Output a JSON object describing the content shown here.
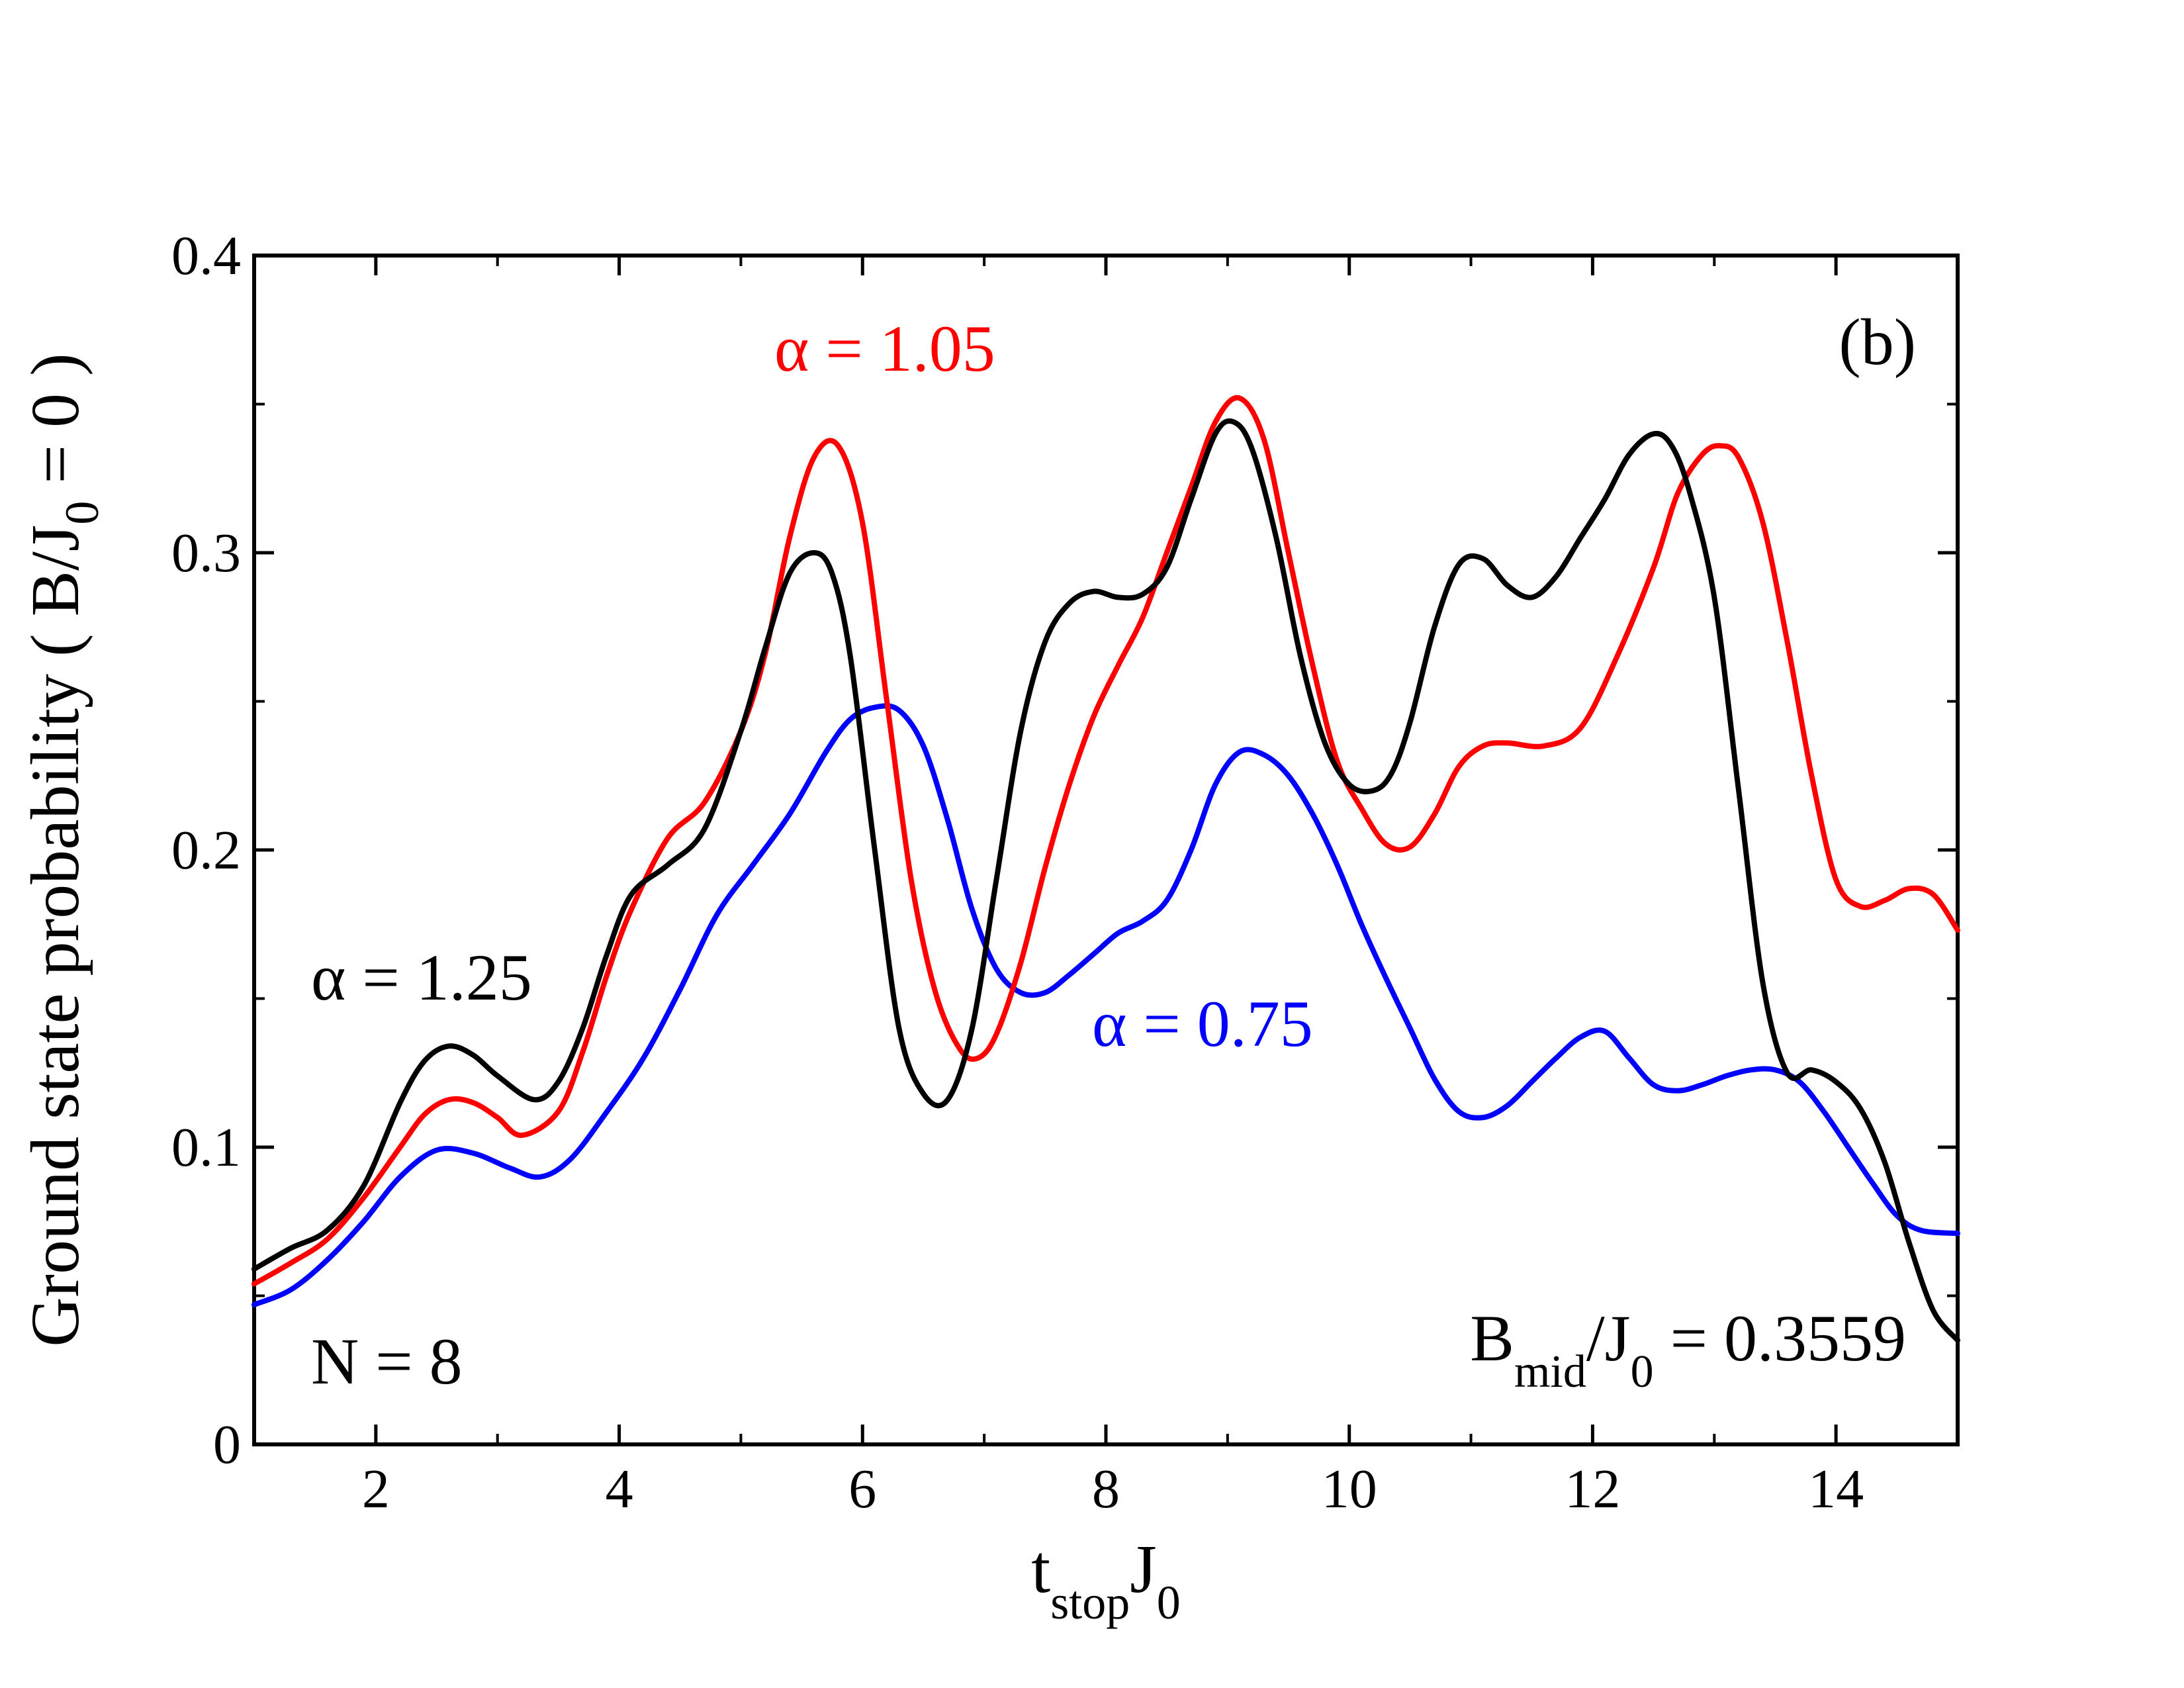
{
  "chart_data": {
    "type": "line",
    "panel_label": "(b)",
    "xlabel": {
      "main": "t",
      "sub": "stop",
      "main2": "J",
      "sub2": "0"
    },
    "ylabel": {
      "prefix": "Ground state probability ( B/J",
      "sub": "0",
      "suffix": " = 0 )"
    },
    "xlim": [
      1,
      15
    ],
    "ylim": [
      0,
      0.4
    ],
    "x_ticks": [
      2,
      4,
      6,
      8,
      10,
      12,
      14
    ],
    "x_tick_labels": [
      "2",
      "4",
      "6",
      "8",
      "10",
      "12",
      "14"
    ],
    "y_ticks": [
      0,
      0.1,
      0.2,
      0.3,
      0.4
    ],
    "y_tick_labels": [
      "0",
      "0.1",
      "0.2",
      "0.3",
      "0.4"
    ],
    "annotations": {
      "n_label": "N = 8",
      "bmid": {
        "main": "B",
        "sub": "mid",
        "main2": "/J",
        "sub2": "0",
        "suffix": " = 0.3559"
      }
    },
    "series": [
      {
        "name": "α = 1.25",
        "label_text": "α = 1.25",
        "color": "#000000",
        "x": [
          1.0,
          1.3,
          1.6,
          1.9,
          2.2,
          2.4,
          2.6,
          2.8,
          3.0,
          3.3,
          3.5,
          3.7,
          3.9,
          4.1,
          4.4,
          4.7,
          5.0,
          5.2,
          5.4,
          5.6,
          5.75,
          5.9,
          6.1,
          6.3,
          6.5,
          6.7,
          6.9,
          7.1,
          7.3,
          7.5,
          7.7,
          7.9,
          8.1,
          8.3,
          8.5,
          8.7,
          8.9,
          9.05,
          9.2,
          9.4,
          9.6,
          9.8,
          10.0,
          10.2,
          10.35,
          10.5,
          10.7,
          10.9,
          11.1,
          11.3,
          11.5,
          11.7,
          11.9,
          12.1,
          12.3,
          12.5,
          12.65,
          12.8,
          13.0,
          13.2,
          13.4,
          13.6,
          13.8,
          14.0,
          14.2,
          14.4,
          14.6,
          14.8,
          15.0
        ],
        "y": [
          0.059,
          0.066,
          0.072,
          0.087,
          0.115,
          0.129,
          0.134,
          0.131,
          0.124,
          0.116,
          0.122,
          0.14,
          0.165,
          0.185,
          0.195,
          0.207,
          0.24,
          0.268,
          0.293,
          0.3,
          0.293,
          0.265,
          0.2,
          0.14,
          0.118,
          0.116,
          0.14,
          0.19,
          0.24,
          0.27,
          0.283,
          0.287,
          0.285,
          0.286,
          0.295,
          0.318,
          0.34,
          0.344,
          0.335,
          0.305,
          0.265,
          0.236,
          0.222,
          0.22,
          0.226,
          0.243,
          0.275,
          0.296,
          0.298,
          0.289,
          0.285,
          0.292,
          0.305,
          0.318,
          0.333,
          0.34,
          0.336,
          0.32,
          0.285,
          0.22,
          0.155,
          0.125,
          0.126,
          0.122,
          0.113,
          0.095,
          0.068,
          0.045,
          0.035
        ]
      },
      {
        "name": "α = 1.05",
        "label_text": "α = 1.05",
        "color": "#ff0000",
        "x": [
          1.0,
          1.3,
          1.6,
          1.9,
          2.2,
          2.4,
          2.6,
          2.8,
          3.0,
          3.2,
          3.5,
          3.7,
          3.9,
          4.1,
          4.4,
          4.7,
          5.0,
          5.2,
          5.4,
          5.6,
          5.8,
          6.0,
          6.2,
          6.4,
          6.6,
          6.8,
          6.95,
          7.1,
          7.3,
          7.5,
          7.7,
          7.9,
          8.1,
          8.3,
          8.5,
          8.7,
          8.9,
          9.1,
          9.3,
          9.5,
          9.7,
          9.9,
          10.1,
          10.3,
          10.5,
          10.7,
          10.9,
          11.1,
          11.3,
          11.6,
          11.9,
          12.2,
          12.5,
          12.7,
          12.9,
          13.05,
          13.2,
          13.4,
          13.6,
          13.8,
          14.0,
          14.2,
          14.4,
          14.6,
          14.8,
          15.0
        ],
        "y": [
          0.054,
          0.061,
          0.069,
          0.083,
          0.1,
          0.111,
          0.116,
          0.115,
          0.11,
          0.104,
          0.112,
          0.132,
          0.158,
          0.18,
          0.204,
          0.216,
          0.24,
          0.266,
          0.305,
          0.332,
          0.336,
          0.31,
          0.25,
          0.19,
          0.152,
          0.133,
          0.13,
          0.138,
          0.162,
          0.194,
          0.222,
          0.245,
          0.262,
          0.278,
          0.3,
          0.322,
          0.344,
          0.352,
          0.338,
          0.3,
          0.262,
          0.23,
          0.214,
          0.202,
          0.201,
          0.212,
          0.228,
          0.235,
          0.236,
          0.235,
          0.241,
          0.265,
          0.295,
          0.32,
          0.333,
          0.336,
          0.332,
          0.31,
          0.27,
          0.225,
          0.19,
          0.181,
          0.183,
          0.187,
          0.185,
          0.173
        ]
      },
      {
        "name": "α = 0.75",
        "label_text": "α = 0.75",
        "color": "#0000ff",
        "x": [
          1.0,
          1.3,
          1.6,
          1.9,
          2.2,
          2.5,
          2.8,
          3.1,
          3.35,
          3.6,
          3.9,
          4.2,
          4.5,
          4.8,
          5.1,
          5.4,
          5.7,
          5.9,
          6.1,
          6.3,
          6.5,
          6.7,
          6.9,
          7.1,
          7.3,
          7.5,
          7.7,
          7.9,
          8.1,
          8.3,
          8.5,
          8.7,
          8.9,
          9.1,
          9.3,
          9.5,
          9.7,
          9.9,
          10.1,
          10.3,
          10.5,
          10.7,
          10.9,
          11.1,
          11.3,
          11.5,
          11.7,
          11.9,
          12.1,
          12.3,
          12.5,
          12.7,
          12.9,
          13.1,
          13.3,
          13.5,
          13.7,
          13.9,
          14.1,
          14.3,
          14.5,
          14.7,
          15.0
        ],
        "y": [
          0.047,
          0.052,
          0.062,
          0.075,
          0.09,
          0.099,
          0.098,
          0.093,
          0.09,
          0.096,
          0.112,
          0.13,
          0.153,
          0.178,
          0.195,
          0.212,
          0.233,
          0.244,
          0.248,
          0.247,
          0.235,
          0.21,
          0.18,
          0.16,
          0.152,
          0.152,
          0.158,
          0.165,
          0.172,
          0.176,
          0.183,
          0.2,
          0.222,
          0.233,
          0.232,
          0.225,
          0.212,
          0.195,
          0.175,
          0.157,
          0.14,
          0.123,
          0.112,
          0.11,
          0.114,
          0.122,
          0.13,
          0.137,
          0.139,
          0.13,
          0.121,
          0.119,
          0.121,
          0.124,
          0.126,
          0.126,
          0.122,
          0.112,
          0.1,
          0.088,
          0.077,
          0.072,
          0.071
        ]
      }
    ]
  }
}
